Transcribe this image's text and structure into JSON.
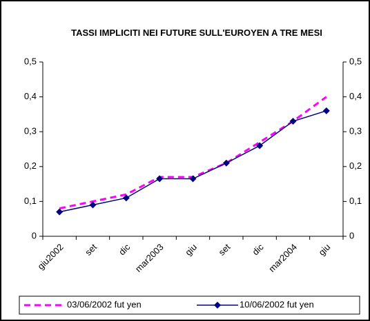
{
  "chart_data": {
    "type": "line",
    "title": "TASSI IMPLICITI NEI FUTURE SULL'EUROYEN A TRE MESI",
    "categories": [
      "giu2002",
      "set",
      "dic",
      "mar2003",
      "giu",
      "set",
      "dic",
      "mar2004",
      "giu"
    ],
    "series": [
      {
        "name": "03/06/2002 fut yen",
        "color": "#ff00ff",
        "dashed": true,
        "marker": null,
        "values": [
          0.08,
          0.1,
          0.12,
          0.17,
          0.17,
          0.21,
          0.27,
          0.33,
          0.4
        ]
      },
      {
        "name": "10/06/2002 fut yen",
        "color": "#000080",
        "dashed": false,
        "marker": "diamond",
        "values": [
          0.07,
          0.09,
          0.11,
          0.165,
          0.165,
          0.21,
          0.26,
          0.33,
          0.36
        ]
      }
    ],
    "ylim": [
      0,
      0.5
    ],
    "yticks": [
      0,
      {
        "value": 0.1,
        "label": "0,1"
      },
      {
        "value": 0.2,
        "label": "0,2"
      },
      {
        "value": 0.3,
        "label": "0,3"
      },
      {
        "value": 0.4,
        "label": "0,4"
      },
      {
        "value": 0.5,
        "label": "0,5"
      }
    ],
    "y2lim": [
      0,
      0.5
    ],
    "y2ticks": [
      0,
      {
        "value": 0.1,
        "label": "0,1"
      },
      {
        "value": 0.2,
        "label": "0,2"
      },
      {
        "value": 0.3,
        "label": "0,3"
      },
      {
        "value": 0.4,
        "label": "0,4"
      },
      {
        "value": 0.5,
        "label": "0,5"
      }
    ],
    "grid": false,
    "legend": "bottom"
  }
}
